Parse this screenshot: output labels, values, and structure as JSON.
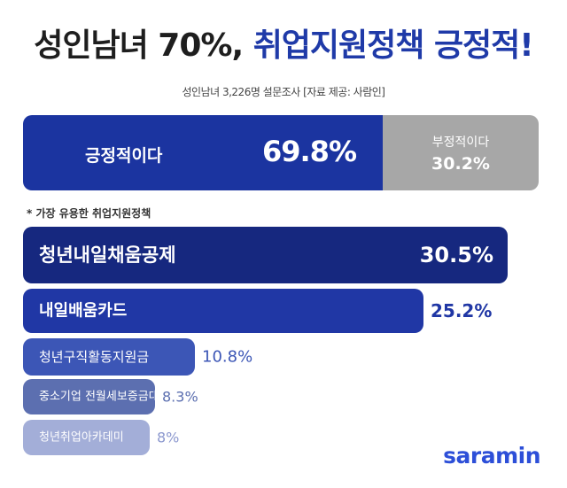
{
  "header": {
    "title_part1": "성인남녀 70%,",
    "title_part2": "취업지원정책 긍정적!",
    "subtitle": "성인남녀 3,226명 설문조사 [자료 제공: 사람인]"
  },
  "split": {
    "positive_label": "긍정적이다",
    "positive_value": "69.8%",
    "negative_label": "부정적이다",
    "negative_value": "30.2%"
  },
  "note": "* 가장 유용한 취업지원정책",
  "logo": "saramin",
  "colors": {
    "positive": "#1b34a0",
    "negative": "#a7a7a7",
    "bars": [
      "#16287f",
      "#2037a5",
      "#3c56b6",
      "#5c6fb0",
      "#a3aed8"
    ],
    "value_labels": [
      "#ffffff",
      "#2037a5",
      "#3c56b6",
      "#5c6fb0",
      "#8d99cf"
    ]
  },
  "chart_data": [
    {
      "type": "bar",
      "categories": [
        "긍정적이다",
        "부정적이다"
      ],
      "values": [
        69.8,
        30.2
      ],
      "ylim": [
        0,
        100
      ]
    },
    {
      "type": "bar",
      "orientation": "horizontal",
      "categories": [
        "청년내일채움공제",
        "내일배움카드",
        "청년구직활동지원금",
        "중소기업 전월세보증금대출",
        "청년취업아카데미"
      ],
      "values": [
        30.5,
        25.2,
        10.8,
        8.3,
        8
      ],
      "value_labels": [
        "30.5%",
        "25.2%",
        "10.8%",
        "8.3%",
        "8%"
      ],
      "xlim": [
        0,
        30.5
      ]
    }
  ]
}
